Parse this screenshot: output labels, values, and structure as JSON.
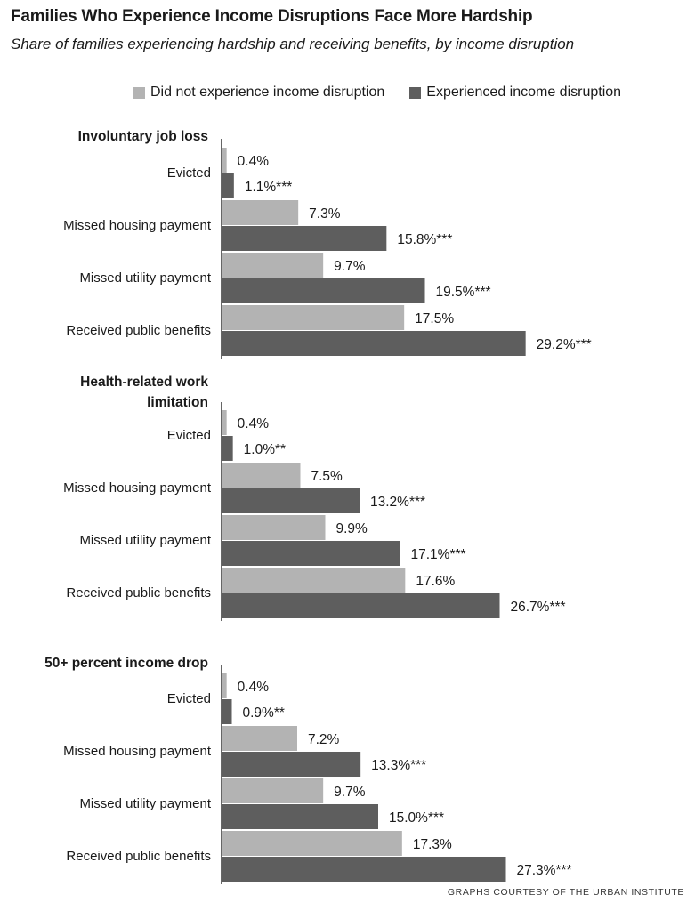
{
  "header": {
    "title": "Families Who Experience Income Disruptions Face More Hardship",
    "subtitle": "Share of families experiencing hardship and receiving benefits, by income disruption",
    "credit": "GRAPHS COURTESY OF THE URBAN INSTITUTE"
  },
  "colors": {
    "did_not": "#b3b3b3",
    "experienced": "#5e5e5e",
    "axis": "#333333"
  },
  "chart_data": {
    "type": "bar",
    "orientation": "horizontal",
    "title": "Families Who Experience Income Disruptions Face More Hardship",
    "subtitle": "Share of families experiencing hardship and receiving benefits, by income disruption",
    "legend_position": "top",
    "grid": false,
    "xlim": [
      0,
      30
    ],
    "series": [
      {
        "name": "Did not experience income disruption",
        "color": "#b3b3b3"
      },
      {
        "name": "Experienced income disruption",
        "color": "#5e5e5e"
      }
    ],
    "groups": [
      {
        "title": [
          "Involuntary job loss"
        ],
        "categories": [
          {
            "label": "Evicted",
            "values": [
              0.4,
              1.1
            ],
            "labels": [
              "0.4%",
              "1.1%***"
            ]
          },
          {
            "label": "Missed housing payment",
            "values": [
              7.3,
              15.8
            ],
            "labels": [
              "7.3%",
              "15.8%***"
            ]
          },
          {
            "label": "Missed utility payment",
            "values": [
              9.7,
              19.5
            ],
            "labels": [
              "9.7%",
              "19.5%***"
            ]
          },
          {
            "label": "Received public benefits",
            "values": [
              17.5,
              29.2
            ],
            "labels": [
              "17.5%",
              "29.2%***"
            ]
          }
        ]
      },
      {
        "title": [
          "Health-related work",
          "limitation"
        ],
        "categories": [
          {
            "label": "Evicted",
            "values": [
              0.4,
              1.0
            ],
            "labels": [
              "0.4%",
              "1.0%**"
            ]
          },
          {
            "label": "Missed housing payment",
            "values": [
              7.5,
              13.2
            ],
            "labels": [
              "7.5%",
              "13.2%***"
            ]
          },
          {
            "label": "Missed utility payment",
            "values": [
              9.9,
              17.1
            ],
            "labels": [
              "9.9%",
              "17.1%***"
            ]
          },
          {
            "label": "Received public benefits",
            "values": [
              17.6,
              26.7
            ],
            "labels": [
              "17.6%",
              "26.7%***"
            ]
          }
        ]
      },
      {
        "title": [
          "50+ percent income drop"
        ],
        "categories": [
          {
            "label": "Evicted",
            "values": [
              0.4,
              0.9
            ],
            "labels": [
              "0.4%",
              "0.9%**"
            ]
          },
          {
            "label": "Missed housing payment",
            "values": [
              7.2,
              13.3
            ],
            "labels": [
              "7.2%",
              "13.3%***"
            ]
          },
          {
            "label": "Missed utility payment",
            "values": [
              9.7,
              15.0
            ],
            "labels": [
              "9.7%",
              "15.0%***"
            ]
          },
          {
            "label": "Received public benefits",
            "values": [
              17.3,
              27.3
            ],
            "labels": [
              "17.3%",
              "27.3%***"
            ]
          }
        ]
      }
    ]
  }
}
